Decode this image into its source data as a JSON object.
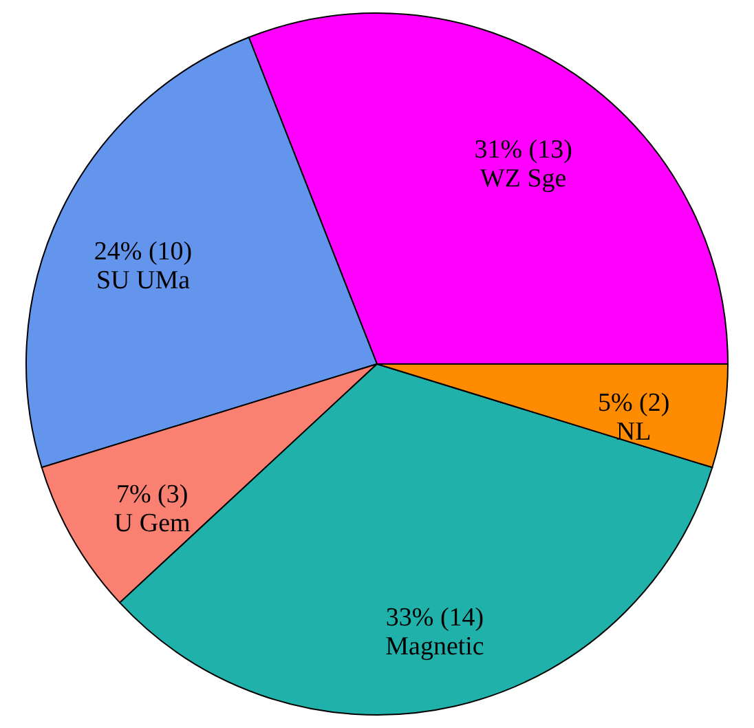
{
  "chart_data": {
    "type": "pie",
    "categories": [
      "WZ Sge",
      "SU UMa",
      "U Gem",
      "Magnetic",
      "NL"
    ],
    "values": [
      13,
      10,
      3,
      14,
      2
    ],
    "colors": [
      "#ff00ff",
      "#6495ed",
      "#fa8072",
      "#20b2aa",
      "#ff8c00"
    ],
    "value_labels": [
      "31% (13)",
      "24% (10)",
      "7% (3)",
      "33% (14)",
      "5% (2)"
    ]
  }
}
